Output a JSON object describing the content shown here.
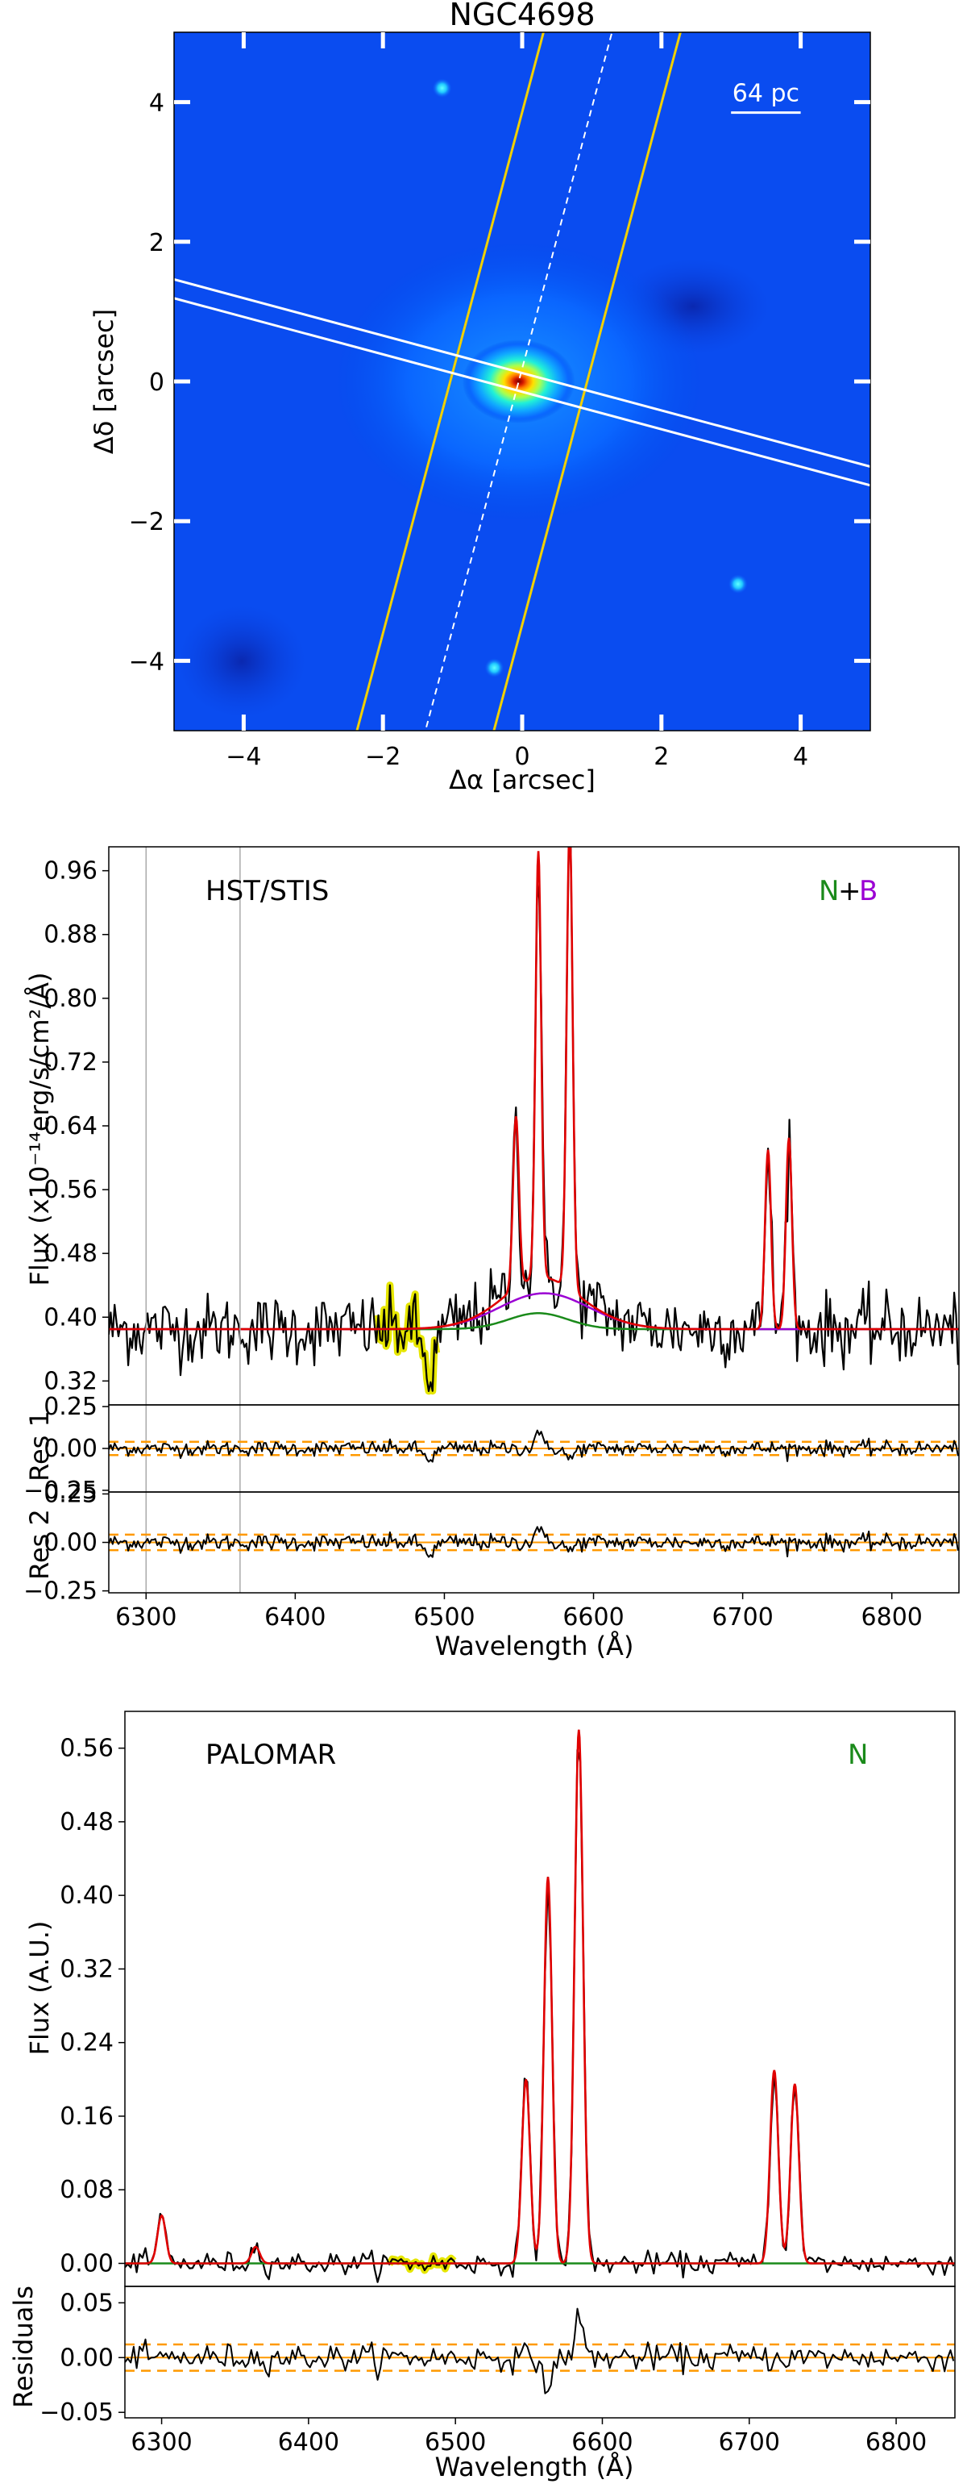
{
  "colors": {
    "data": "#000000",
    "model": "#e00000",
    "narrow": "#1a8a1a",
    "broad": "#9b00d3",
    "residual_band": "#ff9900",
    "masked": "#e6e600",
    "slit": "#f0d000",
    "slit_white": "#ffffff",
    "grid_line": "#aaaaaa"
  },
  "chart_data": [
    {
      "type": "heatmap",
      "title": "NGC4698",
      "xlabel": "Δα [arcsec]",
      "ylabel": "Δδ [arcsec]",
      "xlim": [
        -5,
        5
      ],
      "ylim": [
        -5,
        5
      ],
      "xticks": [
        -4,
        -2,
        0,
        2,
        4
      ],
      "yticks": [
        -4,
        -2,
        0,
        2,
        4
      ],
      "xtick_labels": [
        "−4",
        "−2",
        "0",
        "2",
        "4"
      ],
      "ytick_labels": [
        "−4",
        "−2",
        "0",
        "2",
        "4"
      ],
      "scalebar_label": "64 pc",
      "scalebar_length_arcsec": 1.0,
      "nucleus": [
        -0.05,
        0.0
      ],
      "point_sources": [
        [
          -1.15,
          4.2
        ],
        [
          3.1,
          -2.9
        ],
        [
          -0.4,
          -4.1
        ]
      ],
      "slit_yellow": {
        "pa_deg": 15,
        "half_width_arcsec": 0.95
      },
      "slit_white": {
        "pa_deg": -75,
        "half_width_arcsec": 0.13
      }
    },
    {
      "type": "line",
      "label": "HST/STIS",
      "legend": [
        "N",
        "+",
        "B"
      ],
      "xlabel": "Wavelength (Å)",
      "ylabel": "Flux (x10⁻¹⁴erg/s/cm²/Å)",
      "xlim": [
        6275,
        6845
      ],
      "ylim": [
        0.29,
        0.99
      ],
      "yticks": [
        0.32,
        0.4,
        0.48,
        0.56,
        0.64,
        0.72,
        0.8,
        0.88,
        0.96
      ],
      "ytick_labels": [
        "0.32",
        "0.40",
        "0.48",
        "0.56",
        "0.64",
        "0.72",
        "0.80",
        "0.88",
        "0.96"
      ],
      "xticks": [
        6300,
        6400,
        6500,
        6600,
        6700,
        6800
      ],
      "xtick_labels": [
        "6300",
        "6400",
        "6500",
        "6600",
        "6700",
        "6800"
      ],
      "vlines": [
        6300,
        6363
      ],
      "masked_range": [
        6455,
        6495
      ],
      "continuum": 0.385,
      "lines": [
        {
          "center": 6548,
          "amplitude": 0.215,
          "sigma": 2.0
        },
        {
          "center": 6563,
          "amplitude": 0.535,
          "sigma": 1.9
        },
        {
          "center": 6584,
          "amplitude": 0.585,
          "sigma": 2.0
        },
        {
          "center": 6717,
          "amplitude": 0.225,
          "sigma": 2.0
        },
        {
          "center": 6731,
          "amplitude": 0.24,
          "sigma": 2.0
        }
      ],
      "narrow_base": [
        {
          "center": 6563,
          "amplitude": 0.02,
          "sigma": 20
        }
      ],
      "broad_component": {
        "center": 6567,
        "amplitude": 0.045,
        "sigma": 30
      },
      "residual_panels": [
        {
          "ylabel": "Res 1",
          "ylim": [
            -0.26,
            0.26
          ],
          "yticks": [
            -0.25,
            0.0,
            0.25
          ],
          "ytick_labels": [
            "−0.25",
            "0.00",
            "0.25"
          ],
          "band": 0.04
        },
        {
          "ylabel": "Res 2",
          "ylim": [
            -0.26,
            0.26
          ],
          "yticks": [
            -0.25,
            0.0,
            0.25
          ],
          "ytick_labels": [
            "−0.25",
            "0.00",
            "0.25"
          ],
          "band": 0.04
        }
      ]
    },
    {
      "type": "line",
      "label": "PALOMAR",
      "legend": [
        "N"
      ],
      "xlabel": "Wavelength (Å)",
      "ylabel": "Flux (A.U.)",
      "xlim": [
        6275,
        6840
      ],
      "ylim": [
        -0.025,
        0.6
      ],
      "yticks": [
        0.0,
        0.08,
        0.16,
        0.24,
        0.32,
        0.4,
        0.48,
        0.56
      ],
      "ytick_labels": [
        "0.00",
        "0.08",
        "0.16",
        "0.24",
        "0.32",
        "0.40",
        "0.48",
        "0.56"
      ],
      "xticks": [
        6300,
        6400,
        6500,
        6600,
        6700,
        6800
      ],
      "xtick_labels": [
        "6300",
        "6400",
        "6500",
        "6600",
        "6700",
        "6800"
      ],
      "masked_range": [
        6455,
        6500
      ],
      "continuum": 0.0,
      "lines": [
        {
          "center": 6300,
          "amplitude": 0.052,
          "sigma": 2.8
        },
        {
          "center": 6364,
          "amplitude": 0.018,
          "sigma": 2.8
        },
        {
          "center": 6548,
          "amplitude": 0.2,
          "sigma": 2.8
        },
        {
          "center": 6563,
          "amplitude": 0.42,
          "sigma": 2.8
        },
        {
          "center": 6584,
          "amplitude": 0.58,
          "sigma": 2.9
        },
        {
          "center": 6717,
          "amplitude": 0.21,
          "sigma": 2.8
        },
        {
          "center": 6731,
          "amplitude": 0.195,
          "sigma": 2.8
        }
      ],
      "residual_panels": [
        {
          "ylabel": "Residuals",
          "ylim": [
            -0.055,
            0.065
          ],
          "yticks": [
            -0.05,
            0.0,
            0.05
          ],
          "ytick_labels": [
            "−0.05",
            "0.00",
            "0.05"
          ],
          "band": 0.012
        }
      ]
    }
  ]
}
